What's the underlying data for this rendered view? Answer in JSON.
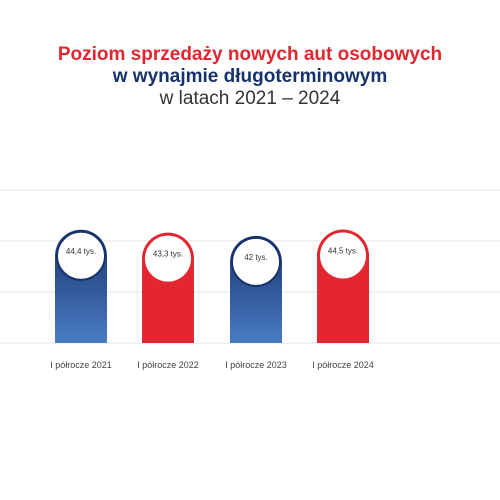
{
  "title": {
    "line1": "Poziom sprzedaży nowych aut osobowych",
    "line2": "w wynajmie długoterminowym",
    "line3": "w latach 2021 – 2024"
  },
  "colors": {
    "red": "#e3262f",
    "blue": "#17336b",
    "blue_light": "#4a7cc4",
    "grid": "#e6e6e6"
  },
  "chart_data": {
    "type": "bar",
    "categories": [
      "I półrocze 2021",
      "I półrocze 2022",
      "I półrocze 2023",
      "I półrocze 2024"
    ],
    "values": [
      44.4,
      43.3,
      42,
      44.5
    ],
    "data_labels": [
      "44,4 tys.",
      "43,3 tys.",
      "42 tys.",
      "44,5 tys."
    ],
    "bar_colors": [
      "blue",
      "red",
      "blue",
      "red"
    ],
    "ylim": [
      0,
      60
    ],
    "grid": true,
    "xlabel": "",
    "ylabel": ""
  }
}
